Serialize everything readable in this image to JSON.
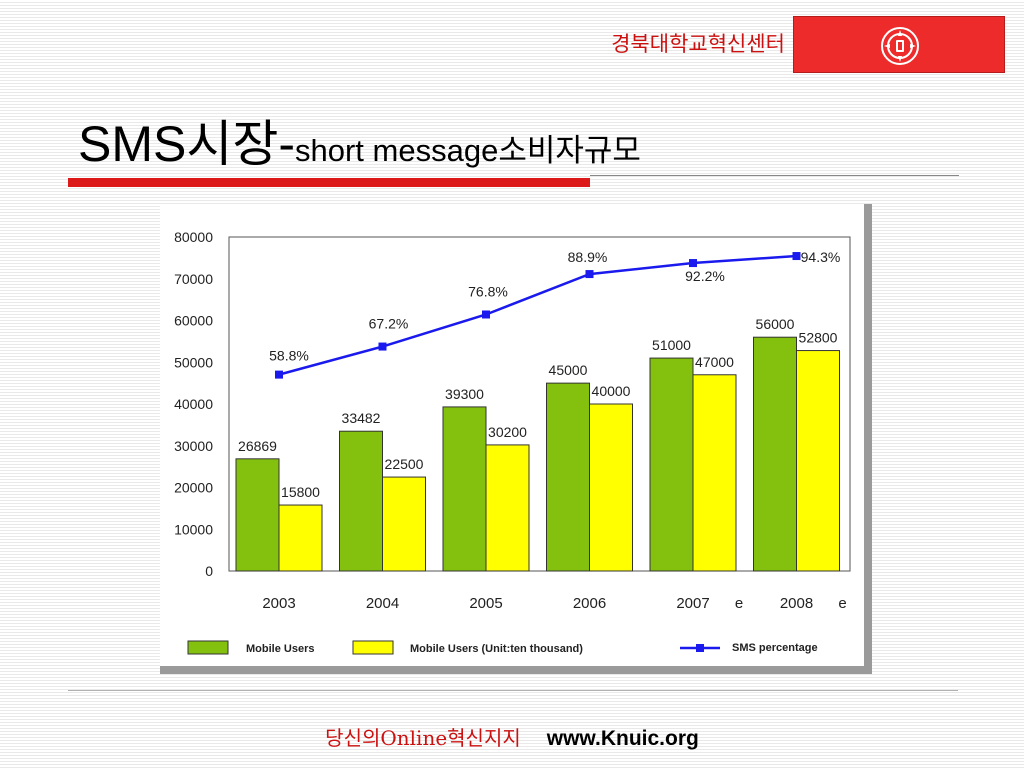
{
  "header": {
    "org_name": "경북대학교혁신센터"
  },
  "title": {
    "main": "SMS시장-",
    "sub": "short message소비자규모"
  },
  "footer": {
    "left": "당신의Online혁신지지",
    "right": "www.Knuic.org"
  },
  "colors": {
    "accent_red": "#dd1a1a",
    "bar_green": "#84c10f",
    "bar_yellow": "#ffff00",
    "line_blue": "#1a1aee"
  },
  "chart_data": {
    "type": "bar",
    "categories": [
      "2003",
      "2004",
      "2005",
      "2006",
      "2007",
      "2008"
    ],
    "category_suffix": [
      "",
      "",
      "",
      "",
      "e",
      "e"
    ],
    "ylim": [
      0,
      80000
    ],
    "yticks": [
      0,
      10000,
      20000,
      30000,
      40000,
      50000,
      60000,
      70000,
      80000
    ],
    "grid": false,
    "legend_position": "bottom",
    "series": [
      {
        "name": "Mobile Users",
        "type": "bar",
        "values": [
          26869,
          33482,
          39300,
          45000,
          51000,
          56000
        ]
      },
      {
        "name": "Mobile Users (Unit:ten thousand)",
        "type": "bar",
        "values": [
          15800,
          22500,
          30200,
          40000,
          47000,
          52800
        ]
      },
      {
        "name": "SMS percentage",
        "type": "line",
        "values": [
          58.8,
          67.2,
          76.8,
          88.9,
          92.2,
          94.3
        ],
        "labels": [
          "58.8%",
          "67.2%",
          "76.8%",
          "88.9%",
          "92.2%",
          "94.3%"
        ]
      }
    ]
  }
}
